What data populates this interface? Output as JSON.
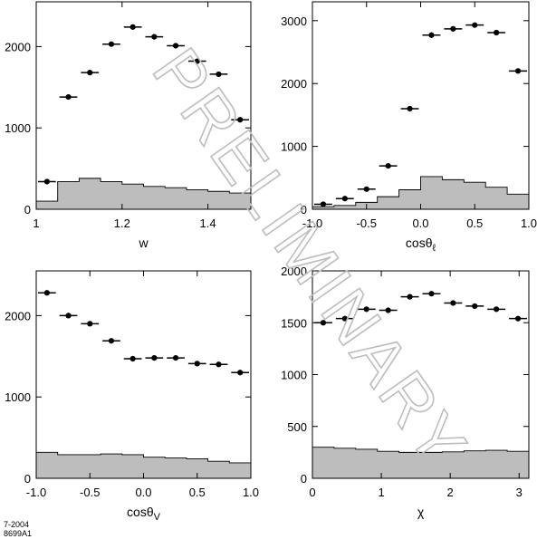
{
  "watermark": "PRELIMINARY",
  "footer": {
    "date": "7-2004",
    "code": "8699A1"
  },
  "colors": {
    "histogram_fill": "#bdbdbd",
    "points": "#000000"
  },
  "chart_data": [
    {
      "id": "w",
      "type": "scatter",
      "xlabel": "w",
      "xlabel_main": "w",
      "xlabel_sub": "",
      "xlim": [
        1.0,
        1.5
      ],
      "ylim": [
        0,
        2550
      ],
      "xticks": [
        1.0,
        1.2,
        1.4
      ],
      "xtick_labels": [
        "1",
        "1.2",
        "1.4"
      ],
      "yticks": [
        0,
        1000,
        2000
      ],
      "ytick_labels": [
        "0",
        "1000",
        "2000"
      ],
      "bins": [
        1.0,
        1.05,
        1.1,
        1.15,
        1.2,
        1.25,
        1.3,
        1.35,
        1.4,
        1.45,
        1.5
      ],
      "points": [
        {
          "x": 1.025,
          "y": 340
        },
        {
          "x": 1.075,
          "y": 1380
        },
        {
          "x": 1.125,
          "y": 1680
        },
        {
          "x": 1.175,
          "y": 2030
        },
        {
          "x": 1.225,
          "y": 2240
        },
        {
          "x": 1.275,
          "y": 2120
        },
        {
          "x": 1.325,
          "y": 2010
        },
        {
          "x": 1.375,
          "y": 1820
        },
        {
          "x": 1.425,
          "y": 1660
        },
        {
          "x": 1.475,
          "y": 1100
        }
      ],
      "background": [
        100,
        340,
        380,
        340,
        310,
        280,
        265,
        240,
        220,
        200
      ]
    },
    {
      "id": "cos-theta-l",
      "type": "scatter",
      "xlabel": "cosθℓ",
      "xlabel_main": "cosθ",
      "xlabel_sub": "ℓ",
      "xlim": [
        -1.0,
        1.0
      ],
      "ylim": [
        0,
        3300
      ],
      "xticks": [
        -1.0,
        -0.5,
        0.0,
        0.5,
        1.0
      ],
      "xtick_labels": [
        "-1.0",
        "-0.5",
        "0.0",
        "0.5",
        "1.0"
      ],
      "yticks": [
        0,
        1000,
        2000,
        3000
      ],
      "ytick_labels": [
        "0",
        "1000",
        "2000",
        "3000"
      ],
      "bins": [
        -1.0,
        -0.8,
        -0.6,
        -0.4,
        -0.2,
        0.0,
        0.2,
        0.4,
        0.6,
        0.8,
        1.0
      ],
      "points": [
        {
          "x": -0.9,
          "y": 80
        },
        {
          "x": -0.7,
          "y": 170
        },
        {
          "x": -0.5,
          "y": 320
        },
        {
          "x": -0.3,
          "y": 690
        },
        {
          "x": -0.1,
          "y": 1600
        },
        {
          "x": 0.1,
          "y": 2770
        },
        {
          "x": 0.3,
          "y": 2870
        },
        {
          "x": 0.5,
          "y": 2930
        },
        {
          "x": 0.7,
          "y": 2810
        },
        {
          "x": 0.9,
          "y": 2200
        }
      ],
      "background": [
        40,
        60,
        110,
        200,
        310,
        520,
        470,
        430,
        350,
        240
      ]
    },
    {
      "id": "cos-theta-v",
      "type": "scatter",
      "xlabel": "cosθV",
      "xlabel_main": "cosθ",
      "xlabel_sub": "V",
      "xlim": [
        -1.0,
        1.0
      ],
      "ylim": [
        0,
        2550
      ],
      "xticks": [
        -1.0,
        -0.5,
        0.0,
        0.5,
        1.0
      ],
      "xtick_labels": [
        "-1.0",
        "-0.5",
        "0.0",
        "0.5",
        "1.0"
      ],
      "yticks": [
        0,
        1000,
        2000
      ],
      "ytick_labels": [
        "0",
        "1000",
        "2000"
      ],
      "bins": [
        -1.0,
        -0.8,
        -0.6,
        -0.4,
        -0.2,
        0.0,
        0.2,
        0.4,
        0.6,
        0.8,
        1.0
      ],
      "points": [
        {
          "x": -0.9,
          "y": 2280
        },
        {
          "x": -0.7,
          "y": 2000
        },
        {
          "x": -0.5,
          "y": 1900
        },
        {
          "x": -0.3,
          "y": 1690
        },
        {
          "x": -0.1,
          "y": 1470
        },
        {
          "x": 0.1,
          "y": 1480
        },
        {
          "x": 0.3,
          "y": 1480
        },
        {
          "x": 0.5,
          "y": 1410
        },
        {
          "x": 0.7,
          "y": 1400
        },
        {
          "x": 0.9,
          "y": 1300
        }
      ],
      "background": [
        320,
        290,
        290,
        300,
        290,
        260,
        250,
        240,
        210,
        190
      ]
    },
    {
      "id": "chi",
      "type": "scatter",
      "xlabel": "χ",
      "xlabel_main": "χ",
      "xlabel_sub": "",
      "xlim": [
        0,
        3.1416
      ],
      "ylim": [
        0,
        2000
      ],
      "xticks": [
        0,
        1,
        2,
        3
      ],
      "xtick_labels": [
        "0",
        "1",
        "2",
        "3"
      ],
      "yticks": [
        0,
        500,
        1000,
        1500,
        2000
      ],
      "ytick_labels": [
        "0",
        "500",
        "1000",
        "1500",
        "2000"
      ],
      "bins": [
        0,
        0.31416,
        0.62832,
        0.94248,
        1.25664,
        1.5708,
        1.88496,
        2.19911,
        2.51327,
        2.82743,
        3.14159
      ],
      "points": [
        {
          "x": 0.157,
          "y": 1500
        },
        {
          "x": 0.471,
          "y": 1540
        },
        {
          "x": 0.785,
          "y": 1630
        },
        {
          "x": 1.1,
          "y": 1620
        },
        {
          "x": 1.414,
          "y": 1750
        },
        {
          "x": 1.728,
          "y": 1780
        },
        {
          "x": 2.042,
          "y": 1690
        },
        {
          "x": 2.356,
          "y": 1660
        },
        {
          "x": 2.67,
          "y": 1630
        },
        {
          "x": 2.985,
          "y": 1540
        }
      ],
      "background": [
        300,
        290,
        280,
        260,
        250,
        250,
        255,
        265,
        270,
        260
      ]
    }
  ]
}
